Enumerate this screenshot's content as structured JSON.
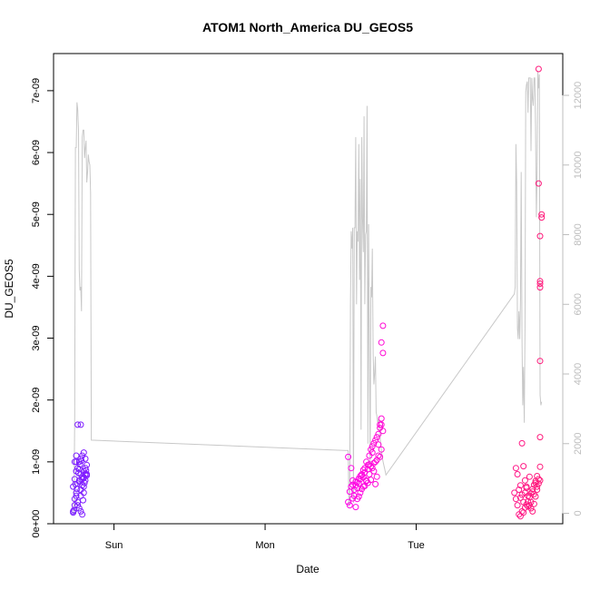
{
  "chart_data": {
    "type": "scatter",
    "title": "ATOM1 North_America DU_GEOS5",
    "xlabel": "Date",
    "ylabel": "DU_GEOS5",
    "x_ticks": [
      "Sun",
      "Mon",
      "Tue"
    ],
    "x_tick_days": [
      1.0,
      2.0,
      3.0
    ],
    "xlim": [
      0.6,
      3.97
    ],
    "y_ticks": [
      "0e+00",
      "1e-09",
      "2e-09",
      "3e-09",
      "4e-09",
      "5e-09",
      "6e-09",
      "7e-09"
    ],
    "ylim": [
      0,
      7.6e-09
    ],
    "y2_ticks": [
      "0",
      "2000",
      "4000",
      "6000",
      "8000",
      "10000",
      "12000"
    ],
    "y2lim": [
      -300,
      13200
    ],
    "grid": false,
    "colors": {
      "start": "#7a1fff",
      "mid": "#ff00ff",
      "end": "#ff1a7a",
      "altitude_line": "#c8c8c8",
      "right_axis": "#bdbdbd"
    },
    "series": [
      {
        "kind": "points",
        "x": [
          0.73,
          0.74,
          0.75,
          0.76,
          0.77,
          0.78,
          0.79,
          0.8,
          0.81,
          0.82,
          0.73,
          0.74,
          0.75,
          0.76,
          0.77,
          0.78,
          0.79,
          0.8,
          0.81,
          0.74,
          0.75,
          0.76,
          0.77,
          0.78,
          0.79,
          0.8,
          0.81,
          0.82,
          0.73,
          0.75,
          0.77,
          0.79,
          0.81,
          0.76,
          0.78,
          0.8,
          0.74,
          0.76,
          0.78,
          0.8,
          0.82,
          0.77,
          0.79,
          0.75,
          0.78,
          0.8,
          0.81,
          0.735,
          0.745,
          0.755,
          0.765,
          0.775,
          0.785,
          0.795,
          0.805,
          0.815
        ],
        "y": [
          2e-10,
          3e-10,
          5e-10,
          6.5e-10,
          7e-10,
          8e-10,
          7.5e-10,
          8.5e-10,
          9e-10,
          7.8e-10,
          6e-10,
          1e-09,
          1.1e-09,
          9e-10,
          1e-09,
          1.05e-09,
          1.1e-09,
          1.15e-09,
          1.05e-09,
          4e-10,
          4.5e-10,
          3.5e-10,
          2.5e-10,
          2e-10,
          1.5e-10,
          5e-10,
          7e-10,
          8e-10,
          1.8e-10,
          8.5e-10,
          6.8e-10,
          7.2e-10,
          8e-10,
          1.6e-09,
          5.5e-10,
          6e-10,
          7.2e-10,
          3e-10,
          4.5e-10,
          7.5e-10,
          9.5e-10,
          8.8e-10,
          6.2e-10,
          1e-09,
          1.6e-09,
          7.4e-10,
          7.9e-10,
          2.2e-10,
          6.4e-10,
          5.6e-10,
          8.2e-10,
          9.6e-10,
          1.02e-09,
          3.8e-10,
          6.6e-10,
          8.6e-10
        ]
      },
      {
        "kind": "points",
        "x": [
          2.55,
          2.56,
          2.57,
          2.58,
          2.59,
          2.6,
          2.61,
          2.62,
          2.63,
          2.64,
          2.65,
          2.66,
          2.67,
          2.68,
          2.69,
          2.7,
          2.71,
          2.72,
          2.73,
          2.74,
          2.75,
          2.76,
          2.77,
          2.78,
          2.55,
          2.57,
          2.59,
          2.61,
          2.63,
          2.65,
          2.67,
          2.69,
          2.71,
          2.73,
          2.75,
          2.77,
          2.56,
          2.58,
          2.6,
          2.62,
          2.64,
          2.66,
          2.68,
          2.7,
          2.72,
          2.74,
          2.76,
          2.78,
          2.77,
          2.78,
          2.76,
          2.77,
          2.75,
          2.74,
          2.73,
          2.6,
          2.62,
          2.64,
          2.66,
          2.68,
          2.7,
          2.72,
          2.61,
          2.63,
          2.65,
          2.67,
          2.69,
          2.71,
          2.58
        ],
        "y": [
          3.5e-10,
          3e-10,
          6e-10,
          7e-10,
          5.5e-10,
          6.2e-10,
          5.8e-10,
          6.5e-10,
          7.2e-10,
          8e-10,
          7.5e-10,
          9e-10,
          1e-09,
          9.5e-10,
          1.1e-09,
          1.2e-09,
          1.25e-09,
          1.3e-09,
          1.35e-09,
          1.4e-09,
          1.45e-09,
          1.6e-09,
          1.7e-09,
          1.5e-09,
          1.08e-09,
          9e-10,
          4.5e-10,
          4e-10,
          5e-10,
          6e-10,
          7e-10,
          8e-10,
          9e-10,
          1e-09,
          1.1e-09,
          1.2e-09,
          5.2e-10,
          6.3e-10,
          6.8e-10,
          7.3e-10,
          7.8e-10,
          8.3e-10,
          8.8e-10,
          9.3e-10,
          9.8e-10,
          1.03e-09,
          1.08e-09,
          2.76e-09,
          2.93e-09,
          3.2e-09,
          1.55e-09,
          1.6e-09,
          1.28e-09,
          7.6e-10,
          6.4e-10,
          2.7e-10,
          4.4e-10,
          5.6e-10,
          6.1e-10,
          6.6e-10,
          7.1e-10,
          8.5e-10,
          6.7e-10,
          7.7e-10,
          8.7e-10,
          6.9e-10,
          9.6e-10,
          1.15e-09,
          4.1e-10
        ]
      },
      {
        "kind": "points",
        "x": [
          3.65,
          3.66,
          3.67,
          3.68,
          3.69,
          3.7,
          3.71,
          3.72,
          3.73,
          3.74,
          3.75,
          3.76,
          3.77,
          3.78,
          3.79,
          3.8,
          3.81,
          3.82,
          3.66,
          3.68,
          3.7,
          3.72,
          3.74,
          3.76,
          3.78,
          3.8,
          3.82,
          3.67,
          3.69,
          3.71,
          3.73,
          3.75,
          3.77,
          3.79,
          3.81,
          3.82,
          3.82,
          3.83,
          3.83,
          3.82,
          3.82,
          3.82,
          3.82,
          3.81,
          3.81,
          3.69,
          3.7,
          3.71,
          3.72,
          3.73,
          3.74,
          3.75,
          3.76,
          3.77,
          3.78,
          3.79,
          3.8
        ],
        "y": [
          5e-10,
          4e-10,
          3e-10,
          1.5e-10,
          1.2e-10,
          2e-10,
          3.5e-10,
          5e-10,
          6e-10,
          4.5e-10,
          3e-10,
          2.5e-10,
          2e-10,
          3.2e-10,
          4.4e-10,
          5.5e-10,
          6.5e-10,
          7e-10,
          9e-10,
          5.5e-10,
          1.3e-09,
          7e-10,
          2.8e-10,
          3.5e-10,
          4.8e-10,
          6e-10,
          9.2e-10,
          8e-10,
          6.2e-10,
          9.3e-10,
          5.8e-10,
          7.6e-10,
          5.2e-10,
          6.6e-10,
          7.2e-10,
          1.4e-09,
          2.63e-09,
          5e-09,
          4.95e-09,
          4.65e-09,
          3.82e-09,
          3.88e-09,
          3.92e-09,
          5.5e-09,
          7.35e-09,
          4.2e-10,
          4.7e-10,
          1.8e-10,
          2.6e-10,
          3.1e-10,
          3.6e-10,
          4.3e-10,
          4.9e-10,
          5.6e-10,
          6.3e-10,
          6.9e-10,
          7.7e-10
        ]
      },
      {
        "kind": "altitude_line",
        "axis": "right",
        "x": [
          0.73,
          0.735,
          0.74,
          0.745,
          0.75,
          0.755,
          0.76,
          0.765,
          0.77,
          0.775,
          0.78,
          0.785,
          0.79,
          0.795,
          0.8,
          0.805,
          0.81,
          0.815,
          0.82,
          0.825,
          0.83,
          0.835,
          0.84,
          0.845,
          0.85,
          2.55,
          2.555,
          2.56,
          2.565,
          2.57,
          2.575,
          2.58,
          2.585,
          2.59,
          2.595,
          2.6,
          2.605,
          2.61,
          2.615,
          2.62,
          2.625,
          2.63,
          2.635,
          2.64,
          2.645,
          2.65,
          2.655,
          2.66,
          2.665,
          2.67,
          2.675,
          2.68,
          2.685,
          2.69,
          2.695,
          2.7,
          2.705,
          2.71,
          2.715,
          2.72,
          2.725,
          2.73,
          2.735,
          2.74,
          2.745,
          2.75,
          2.755,
          2.76,
          2.765,
          2.77,
          2.775,
          2.78,
          2.785,
          2.79,
          2.795,
          2.8,
          3.65,
          3.655,
          3.66,
          3.665,
          3.67,
          3.675,
          3.68,
          3.685,
          3.69,
          3.695,
          3.7,
          3.705,
          3.71,
          3.715,
          3.72,
          3.725,
          3.73,
          3.735,
          3.74,
          3.745,
          3.75,
          3.755,
          3.76,
          3.765,
          3.77,
          3.775,
          3.78,
          3.785,
          3.79,
          3.795,
          3.8,
          3.805,
          3.81,
          3.815,
          3.82,
          3.825,
          3.83
        ],
        "y": [
          0,
          0,
          2800,
          10500,
          10500,
          11800,
          11600,
          11000,
          7000,
          6400,
          6500,
          5800,
          10800,
          11000,
          11000,
          10200,
          10500,
          10700,
          9500,
          9800,
          10300,
          10100,
          10000,
          9200,
          2100,
          1800,
          200,
          400,
          6000,
          8100,
          7600,
          8200,
          300,
          8200,
          8200,
          10800,
          6000,
          8100,
          7800,
          10600,
          6700,
          9600,
          2400,
          10800,
          8500,
          7500,
          11400,
          6000,
          8000,
          8100,
          11700,
          2000,
          8300,
          4800,
          1400,
          6500,
          6200,
          7600,
          4600,
          3700,
          4000,
          4500,
          2900,
          2800,
          2600,
          2700,
          2500,
          2200,
          2000,
          1800,
          1600,
          1500,
          1400,
          1300,
          1200,
          1100,
          6300,
          6500,
          10600,
          9500,
          5300,
          5000,
          5800,
          5000,
          6100,
          9800,
          5000,
          3100,
          4200,
          2600,
          5300,
          12100,
          12300,
          12400,
          11500,
          12500,
          12500,
          12500,
          10400,
          12500,
          11900,
          11700,
          12500,
          12500,
          11100,
          8500,
          9800,
          12700,
          12200,
          12600,
          3400,
          3100,
          3200
        ]
      }
    ]
  }
}
